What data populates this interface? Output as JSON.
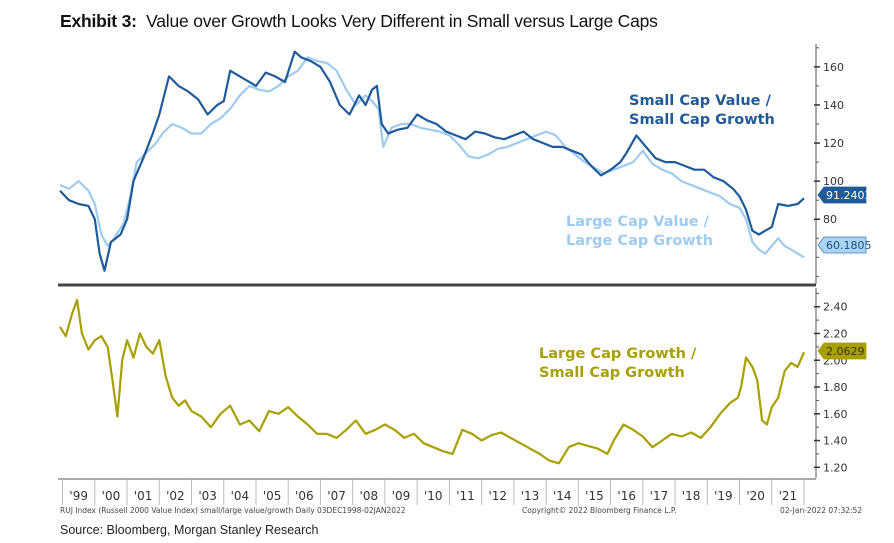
{
  "header": {
    "exhibit": "Exhibit 3:",
    "title": "Value over Growth Looks Very Different in Small versus Large Caps"
  },
  "source": "Source: Bloomberg, Morgan Stanley Research",
  "footer": {
    "index_note": "RUJ Index (Russell 2000 Value Index) small/large value/growth  Daily 03DEC1998-02JAN2022",
    "copyright": "Copyright© 2022 Bloomberg Finance L.P.",
    "timestamp": "02-Jan-2022 07:32:52"
  },
  "colors": {
    "small_value_growth": "#1f5a99",
    "large_value_growth": "#9ecbef",
    "large_small_growth": "#a8a000",
    "divider": "#444444"
  },
  "chart_data": [
    {
      "type": "line",
      "title": "",
      "xlabel": "",
      "ylabel": "",
      "x_tick_labels": [
        "'99",
        "'00",
        "'01",
        "'02",
        "'03",
        "'04",
        "'05",
        "'06",
        "'07",
        "'08",
        "'09",
        "'10",
        "'11",
        "'12",
        "'13",
        "'14",
        "'15",
        "'16",
        "'17",
        "'18",
        "'19",
        "'20",
        "'21"
      ],
      "xlim": [
        1998.92,
        2022.0
      ],
      "ylim": [
        46,
        172
      ],
      "y_ticks": [
        80,
        100,
        120,
        140,
        160
      ],
      "grid": false,
      "series": [
        {
          "name": "Small Cap Value / Small Cap Growth",
          "annotation": [
            "Small Cap Value /",
            "Small Cap Growth"
          ],
          "last_value": "91.2403",
          "x": [
            1998.92,
            1999.2,
            1999.5,
            1999.8,
            2000.0,
            2000.15,
            2000.3,
            2000.5,
            2000.8,
            2001.0,
            2001.2,
            2001.5,
            2001.8,
            2002.0,
            2002.3,
            2002.6,
            2002.9,
            2003.2,
            2003.5,
            2003.8,
            2004.0,
            2004.2,
            2004.5,
            2004.8,
            2005.0,
            2005.3,
            2005.6,
            2005.9,
            2006.2,
            2006.4,
            2006.7,
            2007.0,
            2007.3,
            2007.6,
            2007.9,
            2008.2,
            2008.4,
            2008.6,
            2008.75,
            2008.9,
            2009.1,
            2009.4,
            2009.7,
            2010.0,
            2010.3,
            2010.6,
            2010.9,
            2011.2,
            2011.5,
            2011.8,
            2012.1,
            2012.4,
            2012.7,
            2013.0,
            2013.3,
            2013.6,
            2013.9,
            2014.2,
            2014.5,
            2014.8,
            2015.1,
            2015.4,
            2015.7,
            2016.0,
            2016.3,
            2016.5,
            2016.8,
            2017.1,
            2017.4,
            2017.7,
            2018.0,
            2018.3,
            2018.6,
            2018.9,
            2019.2,
            2019.5,
            2019.8,
            2020.0,
            2020.2,
            2020.4,
            2020.6,
            2020.8,
            2021.0,
            2021.2,
            2021.5,
            2021.8,
            2022.0
          ],
          "y": [
            95,
            90,
            88,
            87,
            80,
            62,
            53,
            68,
            72,
            80,
            100,
            112,
            125,
            135,
            155,
            150,
            147,
            143,
            135,
            140,
            142,
            158,
            155,
            152,
            150,
            157,
            155,
            152,
            168,
            165,
            163,
            160,
            152,
            140,
            135,
            145,
            140,
            148,
            150,
            130,
            125,
            127,
            128,
            135,
            132,
            130,
            126,
            124,
            122,
            126,
            125,
            123,
            122,
            124,
            126,
            122,
            120,
            118,
            118,
            116,
            114,
            108,
            103,
            106,
            110,
            115,
            124,
            118,
            112,
            110,
            110,
            108,
            106,
            106,
            102,
            100,
            96,
            92,
            85,
            74,
            72,
            74,
            76,
            88,
            87,
            88,
            91
          ]
        },
        {
          "name": "Large Cap Value / Large Cap Growth",
          "annotation": [
            "Large Cap Value /",
            "Large Cap Growth"
          ],
          "last_value": "60.1805",
          "x": [
            1998.92,
            1999.2,
            1999.5,
            1999.8,
            2000.0,
            2000.2,
            2000.4,
            2000.6,
            2000.9,
            2001.1,
            2001.3,
            2001.6,
            2001.9,
            2002.1,
            2002.4,
            2002.7,
            2003.0,
            2003.3,
            2003.6,
            2003.9,
            2004.2,
            2004.5,
            2004.8,
            2005.1,
            2005.4,
            2005.7,
            2006.0,
            2006.3,
            2006.6,
            2006.9,
            2007.2,
            2007.5,
            2007.8,
            2008.1,
            2008.4,
            2008.6,
            2008.8,
            2008.95,
            2009.2,
            2009.5,
            2009.8,
            2010.1,
            2010.4,
            2010.7,
            2011.0,
            2011.3,
            2011.6,
            2011.9,
            2012.2,
            2012.5,
            2012.8,
            2013.1,
            2013.4,
            2013.7,
            2014.0,
            2014.3,
            2014.6,
            2014.9,
            2015.2,
            2015.5,
            2015.8,
            2016.1,
            2016.4,
            2016.7,
            2017.0,
            2017.3,
            2017.6,
            2017.9,
            2018.2,
            2018.5,
            2018.8,
            2019.1,
            2019.4,
            2019.7,
            2020.0,
            2020.2,
            2020.4,
            2020.6,
            2020.8,
            2021.0,
            2021.2,
            2021.4,
            2021.6,
            2021.8,
            2022.0
          ],
          "y": [
            98,
            96,
            100,
            95,
            88,
            72,
            66,
            70,
            78,
            92,
            110,
            115,
            120,
            125,
            130,
            128,
            125,
            125,
            130,
            133,
            138,
            145,
            150,
            148,
            147,
            150,
            155,
            158,
            165,
            163,
            162,
            158,
            148,
            140,
            145,
            142,
            138,
            118,
            128,
            130,
            130,
            128,
            127,
            126,
            124,
            119,
            113,
            112,
            114,
            117,
            118,
            120,
            122,
            124,
            126,
            124,
            118,
            114,
            110,
            107,
            104,
            106,
            108,
            110,
            116,
            109,
            106,
            104,
            100,
            98,
            96,
            94,
            92,
            88,
            86,
            80,
            68,
            64,
            62,
            66,
            70,
            66,
            64,
            62,
            60
          ]
        }
      ]
    },
    {
      "type": "line",
      "title": "",
      "xlabel": "",
      "ylabel": "",
      "x_tick_labels": [
        "'99",
        "'00",
        "'01",
        "'02",
        "'03",
        "'04",
        "'05",
        "'06",
        "'07",
        "'08",
        "'09",
        "'10",
        "'11",
        "'12",
        "'13",
        "'14",
        "'15",
        "'16",
        "'17",
        "'18",
        "'19",
        "'20",
        "'21"
      ],
      "xlim": [
        1998.92,
        2022.0
      ],
      "ylim": [
        1.12,
        2.54
      ],
      "y_ticks": [
        1.2,
        1.4,
        1.6,
        1.8,
        2.0,
        2.2,
        2.4
      ],
      "grid": false,
      "series": [
        {
          "name": "Large Cap Growth / Small Cap Growth",
          "annotation": [
            "Large Cap Growth /",
            "Small Cap Growth"
          ],
          "last_value": "2.0629",
          "x": [
            1998.92,
            1999.1,
            1999.3,
            1999.45,
            1999.6,
            1999.8,
            2000.0,
            2000.2,
            2000.4,
            2000.55,
            2000.7,
            2000.85,
            2001.0,
            2001.2,
            2001.4,
            2001.6,
            2001.8,
            2002.0,
            2002.2,
            2002.4,
            2002.6,
            2002.8,
            2003.0,
            2003.3,
            2003.6,
            2003.9,
            2004.2,
            2004.5,
            2004.8,
            2005.1,
            2005.4,
            2005.7,
            2006.0,
            2006.3,
            2006.6,
            2006.9,
            2007.2,
            2007.5,
            2007.8,
            2008.1,
            2008.4,
            2008.7,
            2009.0,
            2009.3,
            2009.6,
            2009.9,
            2010.2,
            2010.5,
            2010.8,
            2011.1,
            2011.4,
            2011.7,
            2012.0,
            2012.3,
            2012.6,
            2012.9,
            2013.2,
            2013.5,
            2013.8,
            2014.1,
            2014.4,
            2014.7,
            2015.0,
            2015.3,
            2015.6,
            2015.9,
            2016.1,
            2016.4,
            2016.7,
            2017.0,
            2017.3,
            2017.6,
            2017.9,
            2018.2,
            2018.5,
            2018.8,
            2019.1,
            2019.4,
            2019.7,
            2019.95,
            2020.05,
            2020.2,
            2020.4,
            2020.55,
            2020.7,
            2020.85,
            2021.0,
            2021.2,
            2021.4,
            2021.6,
            2021.8,
            2022.0
          ],
          "y": [
            2.25,
            2.18,
            2.35,
            2.45,
            2.2,
            2.08,
            2.15,
            2.18,
            2.1,
            1.85,
            1.58,
            2.0,
            2.15,
            2.02,
            2.2,
            2.1,
            2.05,
            2.15,
            1.88,
            1.72,
            1.66,
            1.7,
            1.62,
            1.58,
            1.5,
            1.6,
            1.66,
            1.52,
            1.55,
            1.47,
            1.62,
            1.6,
            1.65,
            1.58,
            1.52,
            1.45,
            1.45,
            1.42,
            1.48,
            1.55,
            1.45,
            1.48,
            1.52,
            1.48,
            1.42,
            1.45,
            1.38,
            1.35,
            1.32,
            1.3,
            1.48,
            1.45,
            1.4,
            1.44,
            1.46,
            1.42,
            1.38,
            1.34,
            1.3,
            1.25,
            1.23,
            1.35,
            1.38,
            1.36,
            1.34,
            1.3,
            1.4,
            1.52,
            1.48,
            1.43,
            1.35,
            1.4,
            1.45,
            1.43,
            1.46,
            1.42,
            1.5,
            1.6,
            1.68,
            1.72,
            1.8,
            2.02,
            1.95,
            1.85,
            1.55,
            1.52,
            1.65,
            1.72,
            1.92,
            1.98,
            1.95,
            2.06
          ]
        }
      ]
    }
  ]
}
